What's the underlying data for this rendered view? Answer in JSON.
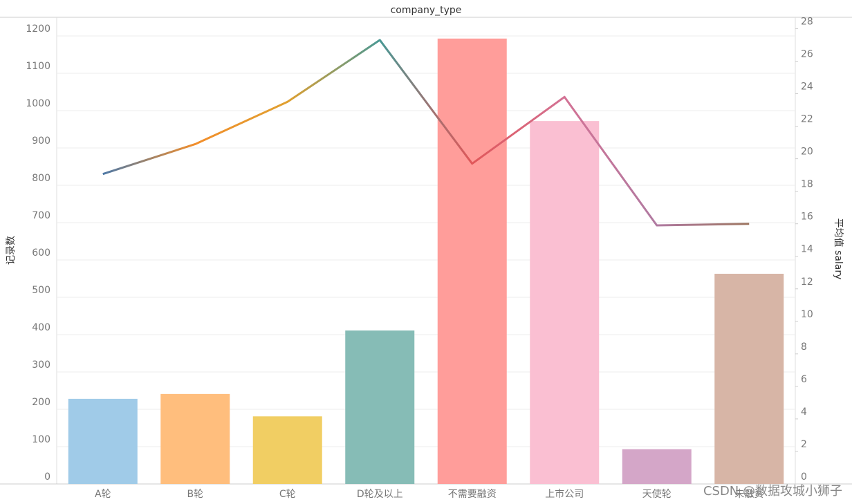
{
  "chart_data": {
    "type": "combo",
    "title": "company_type",
    "categories": [
      "A轮",
      "B轮",
      "C轮",
      "D轮及以上",
      "不需要融资",
      "上市公司",
      "天使轮",
      "未融资"
    ],
    "series": [
      {
        "name": "记录数",
        "type": "bar",
        "axis": "y",
        "colors": [
          "#a0cbe8",
          "#ffbe7d",
          "#f1ce63",
          "#86bcb6",
          "#ff9d9a",
          "#fabfd2",
          "#d4a6c8",
          "#d7b5a6"
        ],
        "values": [
          228,
          241,
          181,
          411,
          1193,
          972,
          93,
          563
        ]
      },
      {
        "name": "平均值 salary",
        "type": "line",
        "axis": "y2",
        "colors": [
          "#4e79a7",
          "#f28e2b",
          "#e0a030",
          "#499894",
          "#e15759",
          "#d37295",
          "#b07aa1",
          "#9d7660"
        ],
        "values": [
          19.06,
          20.9,
          23.5,
          27.3,
          19.7,
          23.8,
          15.9,
          16.0
        ]
      }
    ],
    "ylim": [
      0,
      1250
    ],
    "yticks": [
      0,
      100,
      200,
      300,
      400,
      500,
      600,
      700,
      800,
      900,
      1000,
      1100,
      1200
    ],
    "y2lim": [
      0,
      28.7
    ],
    "y2ticks": [
      0,
      2,
      4,
      6,
      8,
      10,
      12,
      14,
      16,
      18,
      20,
      22,
      24,
      26,
      28
    ],
    "grid": true,
    "watermark": "CSDN @数据攻城小狮子"
  }
}
